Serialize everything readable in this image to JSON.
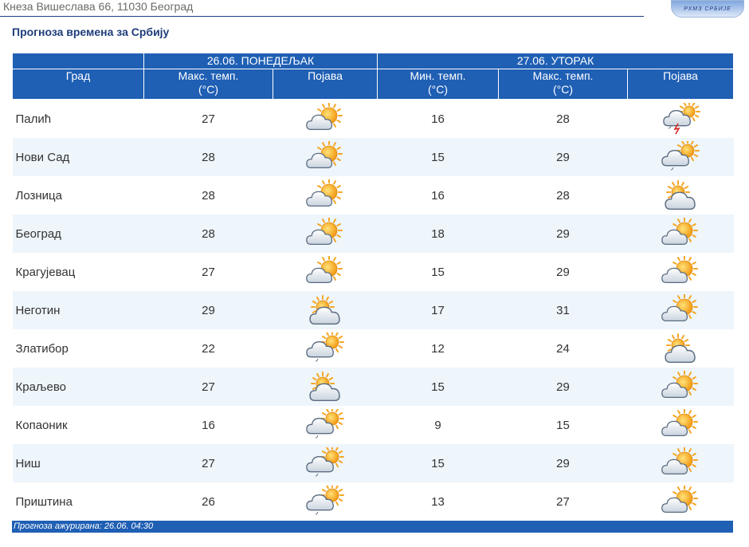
{
  "header": {
    "address": "Кнеза Вишеслава 66, 11030 Београд",
    "logo_text": "РХМЗ СРБИЈЕ"
  },
  "page_title": "Прогноза времена за Србију",
  "table": {
    "day1_label": "26.06. ПОНЕДЕЉАК",
    "day2_label": "27.06. УТОРАК",
    "columns": {
      "city": "Град",
      "day1_max": "Макс. темп.",
      "day1_max_unit": "(°C)",
      "day1_phenomenon": "Појава",
      "day2_min": "Мин. темп.",
      "day2_min_unit": "(°C)",
      "day2_max": "Макс. темп.",
      "day2_max_unit": "(°C)",
      "day2_phenomenon": "Појава"
    },
    "rows": [
      {
        "city": "Палић",
        "d1_max": "27",
        "d1_icon": "sun-cloud-icon",
        "d2_min": "16",
        "d2_max": "28",
        "d2_icon": "thunderstorm-icon"
      },
      {
        "city": "Нови Сад",
        "d1_max": "28",
        "d1_icon": "sun-cloud-icon",
        "d2_min": "15",
        "d2_max": "29",
        "d2_icon": "cloud-rain-icon"
      },
      {
        "city": "Лозница",
        "d1_max": "28",
        "d1_icon": "sun-cloud-icon",
        "d2_min": "16",
        "d2_max": "28",
        "d2_icon": "cloud-sun-icon"
      },
      {
        "city": "Београд",
        "d1_max": "28",
        "d1_icon": "sun-cloud-icon",
        "d2_min": "18",
        "d2_max": "29",
        "d2_icon": "sun-cloud-icon"
      },
      {
        "city": "Крагујевац",
        "d1_max": "27",
        "d1_icon": "sun-cloud-icon",
        "d2_min": "15",
        "d2_max": "29",
        "d2_icon": "sun-cloud-icon"
      },
      {
        "city": "Неготин",
        "d1_max": "29",
        "d1_icon": "cloud-sun-icon",
        "d2_min": "17",
        "d2_max": "31",
        "d2_icon": "sun-cloud-icon"
      },
      {
        "city": "Златибор",
        "d1_max": "22",
        "d1_icon": "cloud-rain-icon",
        "d2_min": "12",
        "d2_max": "24",
        "d2_icon": "cloud-sun-icon"
      },
      {
        "city": "Краљево",
        "d1_max": "27",
        "d1_icon": "cloud-sun-icon",
        "d2_min": "15",
        "d2_max": "29",
        "d2_icon": "sun-cloud-icon"
      },
      {
        "city": "Копаоник",
        "d1_max": "16",
        "d1_icon": "cloud-rain-icon",
        "d2_min": "9",
        "d2_max": "15",
        "d2_icon": "sun-cloud-icon"
      },
      {
        "city": "Ниш",
        "d1_max": "27",
        "d1_icon": "cloud-rain-icon",
        "d2_min": "15",
        "d2_max": "29",
        "d2_icon": "sun-cloud-icon"
      },
      {
        "city": "Приштина",
        "d1_max": "26",
        "d1_icon": "cloud-rain-icon",
        "d2_min": "13",
        "d2_max": "27",
        "d2_icon": "sun-cloud-icon"
      }
    ]
  },
  "footer": {
    "updated": "Прогноза ажурирана:  26.06. 04:30"
  },
  "colors": {
    "header_blue": "#1f5fb4",
    "title_blue": "#1f3d7a",
    "row_alt": "#eef5fb",
    "sun": "#f5a623"
  }
}
